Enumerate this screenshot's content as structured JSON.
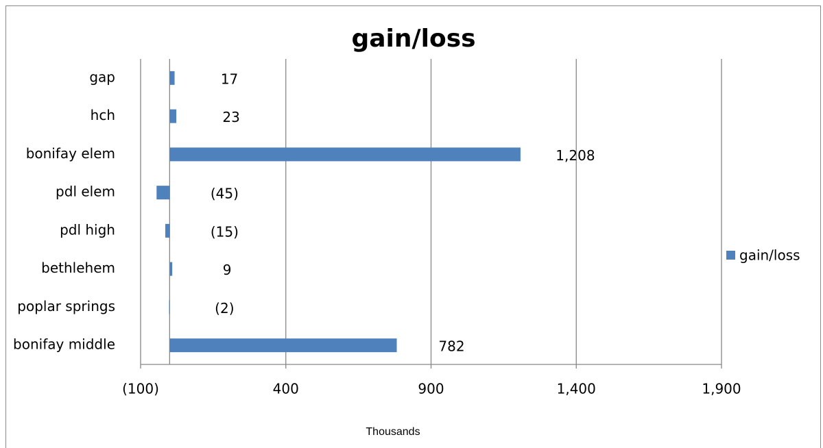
{
  "chart_data": {
    "type": "bar",
    "orientation": "horizontal",
    "title": "gain/loss",
    "x_label": "Thousands",
    "categories": [
      "gap",
      "hch",
      "bonifay elem",
      "pdl elem",
      "pdl high",
      "bethlehem",
      "poplar springs",
      "bonifay middle"
    ],
    "series": [
      {
        "name": "gain/loss",
        "color": "#4f81bd",
        "values": [
          17,
          23,
          1208,
          -45,
          -15,
          9,
          -2,
          782
        ],
        "value_labels": [
          "17",
          "23",
          "1,208",
          "(45)",
          "(15)",
          "9",
          "(2)",
          "782"
        ]
      }
    ],
    "xlim": [
      -100,
      1900
    ],
    "xticks": [
      {
        "value": -100,
        "label": "(100)"
      },
      400,
      900,
      {
        "value": 1400,
        "label": "1,400"
      },
      {
        "value": 1900,
        "label": "1,900"
      }
    ],
    "grid": true,
    "legend": "right"
  }
}
